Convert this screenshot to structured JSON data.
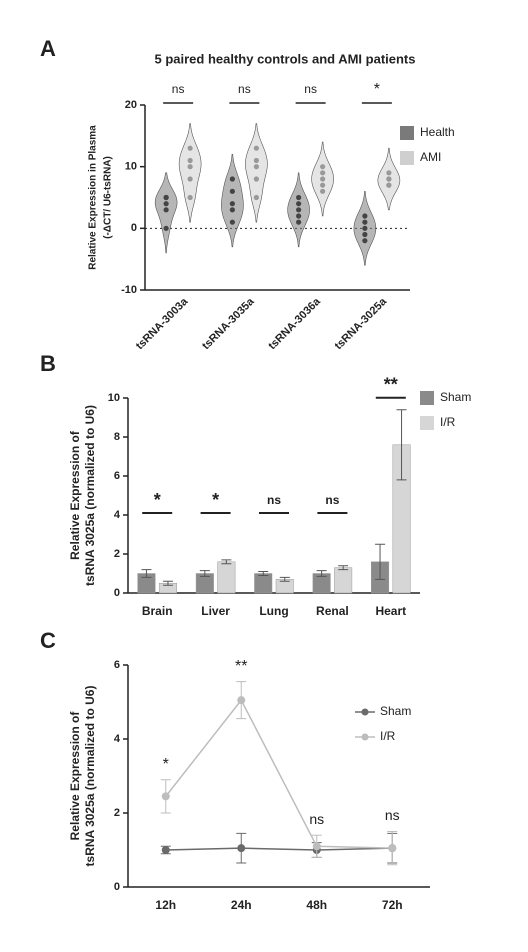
{
  "chart_data": [
    {
      "type": "violin",
      "panel": "A",
      "title": "5 paired healthy controls and AMI patients",
      "ylabel": [
        "Relative Expression in Plasma",
        "(-ΔCT/ U6-tsRNA)"
      ],
      "categories": [
        "tsRNA-3003a",
        "tsRNA-3035a",
        "tsRNA-3036a",
        "tsRNA-3025a"
      ],
      "series": [
        {
          "name": "Health",
          "color": "#7a7a7a",
          "values": [
            [
              5,
              4,
              5,
              0,
              3
            ],
            [
              8,
              4,
              3,
              1,
              6
            ],
            [
              3,
              1,
              2,
              5,
              4
            ],
            [
              1,
              -2,
              0,
              2,
              -1
            ]
          ]
        },
        {
          "name": "AMI",
          "color": "#cfcfcf",
          "values": [
            [
              5,
              8,
              11,
              13,
              10
            ],
            [
              5,
              10,
              13,
              8,
              11
            ],
            [
              6,
              8,
              10,
              9,
              7
            ],
            [
              7,
              8,
              8,
              9,
              7
            ]
          ]
        }
      ],
      "significance": [
        "ns",
        "ns",
        "ns",
        "*"
      ],
      "hline": 0,
      "ylim": [
        -10,
        20
      ],
      "yticks": [
        -10,
        0,
        10,
        20
      ]
    },
    {
      "type": "bar",
      "panel": "B",
      "ylabel": [
        "Relative Expression of",
        "tsRNA 3025a (normalized to U6)"
      ],
      "categories": [
        "Brain",
        "Liver",
        "Lung",
        "Renal",
        "Heart"
      ],
      "series": [
        {
          "name": "Sham",
          "color": "#8a8a8a",
          "values": [
            1.0,
            1.0,
            1.0,
            1.0,
            1.6
          ],
          "errors": [
            0.2,
            0.15,
            0.1,
            0.15,
            0.9
          ]
        },
        {
          "name": "I/R",
          "color": "#d6d6d6",
          "values": [
            0.5,
            1.6,
            0.7,
            1.3,
            7.6
          ],
          "errors": [
            0.1,
            0.1,
            0.1,
            0.1,
            1.8
          ]
        }
      ],
      "significance": [
        "*",
        "*",
        "ns",
        "ns",
        "**"
      ],
      "ylim": [
        0,
        10
      ],
      "yticks": [
        0,
        2,
        4,
        6,
        8,
        10
      ]
    },
    {
      "type": "line",
      "panel": "C",
      "ylabel": [
        "Relative Expression of",
        "tsRNA 3025a (normalized to U6)"
      ],
      "categories": [
        "12h",
        "24h",
        "48h",
        "72h"
      ],
      "series": [
        {
          "name": "Sham",
          "color": "#6a6a6a",
          "values": [
            1.0,
            1.05,
            1.0,
            1.05
          ],
          "errors": [
            0.1,
            0.4,
            0.2,
            0.4
          ]
        },
        {
          "name": "I/R",
          "color": "#bdbdbd",
          "values": [
            2.45,
            5.05,
            1.1,
            1.05
          ],
          "errors": [
            0.45,
            0.5,
            0.3,
            0.45
          ]
        }
      ],
      "significance": [
        "*",
        "**",
        "ns",
        "ns"
      ],
      "ylim": [
        0,
        6
      ],
      "yticks": [
        0,
        2,
        4,
        6
      ]
    }
  ]
}
